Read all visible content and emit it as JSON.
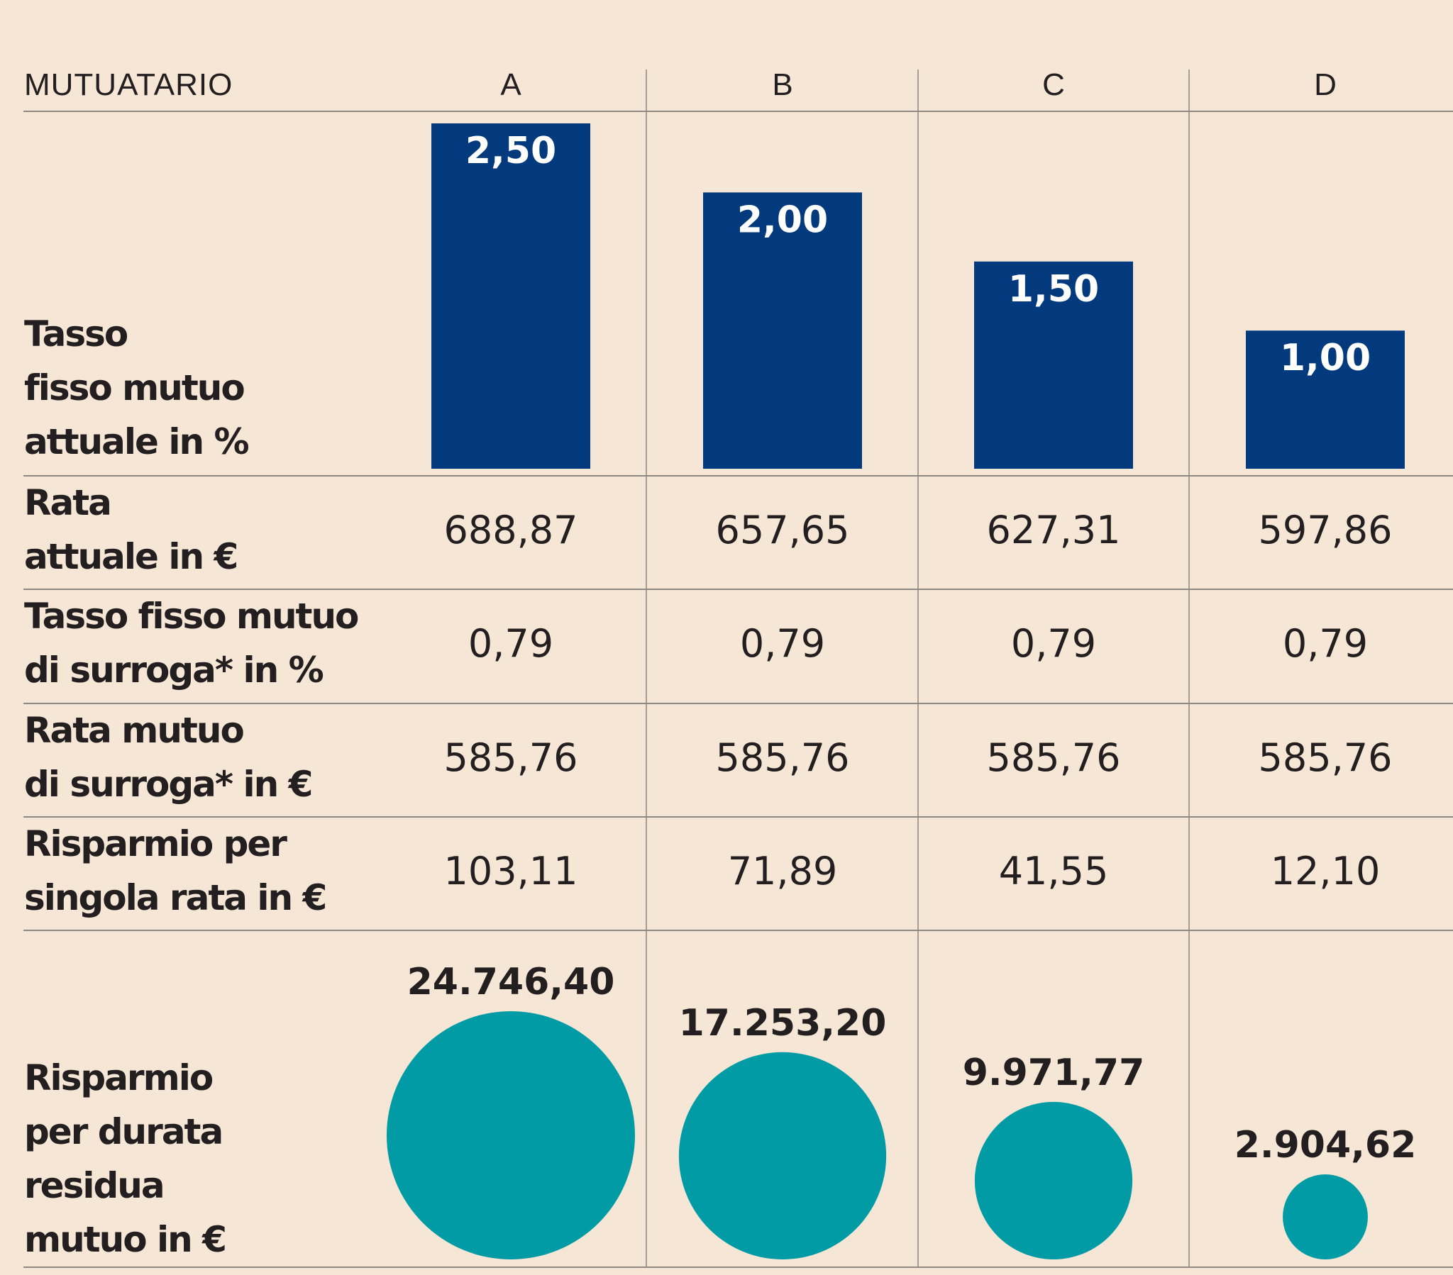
{
  "colors": {
    "background": "#f5e6d6",
    "bar": "#033a7e",
    "bubble": "#009ba4",
    "text": "#231f20"
  },
  "header": {
    "label": "MUTUATARIO",
    "columns": [
      "A",
      "B",
      "C",
      "D"
    ]
  },
  "rows": [
    {
      "label_lines": [
        "Tasso",
        "fisso mutuo",
        "attuale in %"
      ]
    },
    {
      "label_lines": [
        "Rata",
        "attuale in €"
      ],
      "values": [
        "688,87",
        "657,65",
        "627,31",
        "597,86"
      ]
    },
    {
      "label_lines": [
        "Tasso fisso mutuo",
        "di surroga* in %"
      ],
      "values": [
        "0,79",
        "0,79",
        "0,79",
        "0,79"
      ]
    },
    {
      "label_lines": [
        "Rata mutuo",
        "di surroga* in €"
      ],
      "values": [
        "585,76",
        "585,76",
        "585,76",
        "585,76"
      ]
    },
    {
      "label_lines": [
        "Risparmio per",
        "singola rata in €"
      ],
      "values": [
        "103,11",
        "71,89",
        "41,55",
        "12,10"
      ]
    },
    {
      "label_lines": [
        "Risparmio",
        "per durata",
        "residua",
        "mutuo in €"
      ]
    }
  ],
  "chart_data": [
    {
      "type": "bar",
      "title": "Tasso fisso mutuo attuale in %",
      "categories": [
        "A",
        "B",
        "C",
        "D"
      ],
      "values": [
        2.5,
        2.0,
        1.5,
        1.0
      ],
      "labels": [
        "2,50",
        "2,00",
        "1,50",
        "1,00"
      ],
      "ylim": [
        0,
        2.5
      ]
    },
    {
      "type": "bubble",
      "title": "Risparmio per durata residua mutuo in €",
      "categories": [
        "A",
        "B",
        "C",
        "D"
      ],
      "values": [
        24746.4,
        17253.2,
        9971.77,
        2904.62
      ],
      "labels": [
        "24.746,40",
        "17.253,20",
        "9.971,77",
        "2.904,62"
      ]
    }
  ]
}
